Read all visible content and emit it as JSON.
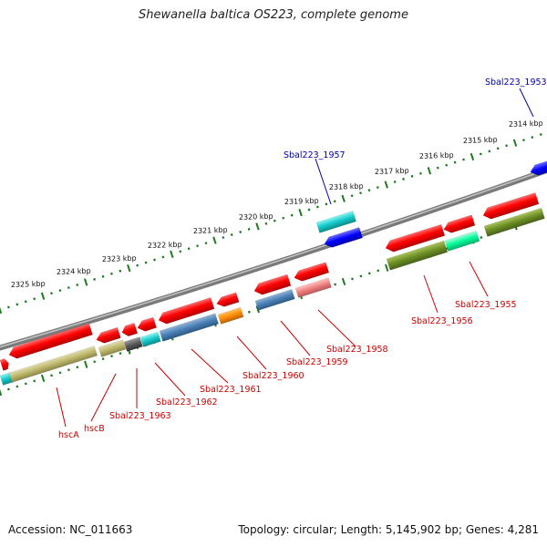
{
  "title": "Shewanella baltica OS223, complete genome",
  "footer": {
    "accession": "Accession: NC_011663",
    "summary": "Topology: circular; Length: 5,145,902 bp; Genes: 4,281"
  },
  "colors": {
    "backbone": "#8a8a8a",
    "tick": "#1f7a1f",
    "gene_label": "#cc0000",
    "highlight_label": "#0000aa"
  },
  "kbp_labels": [
    "2314 kbp",
    "2315 kbp",
    "2316 kbp",
    "2317 kbp",
    "2318 kbp",
    "2319 kbp",
    "2320 kbp",
    "2321 kbp",
    "2322 kbp",
    "2323 kbp",
    "2324 kbp",
    "2325 kbp"
  ],
  "gene_labels": [
    "Sbal223_1953",
    "Sbal223_1957",
    "Sbal223_1955",
    "Sbal223_1956",
    "Sbal223_1958",
    "Sbal223_1959",
    "Sbal223_1960",
    "Sbal223_1961",
    "Sbal223_1962",
    "Sbal223_1963",
    "hscB",
    "hscA"
  ]
}
